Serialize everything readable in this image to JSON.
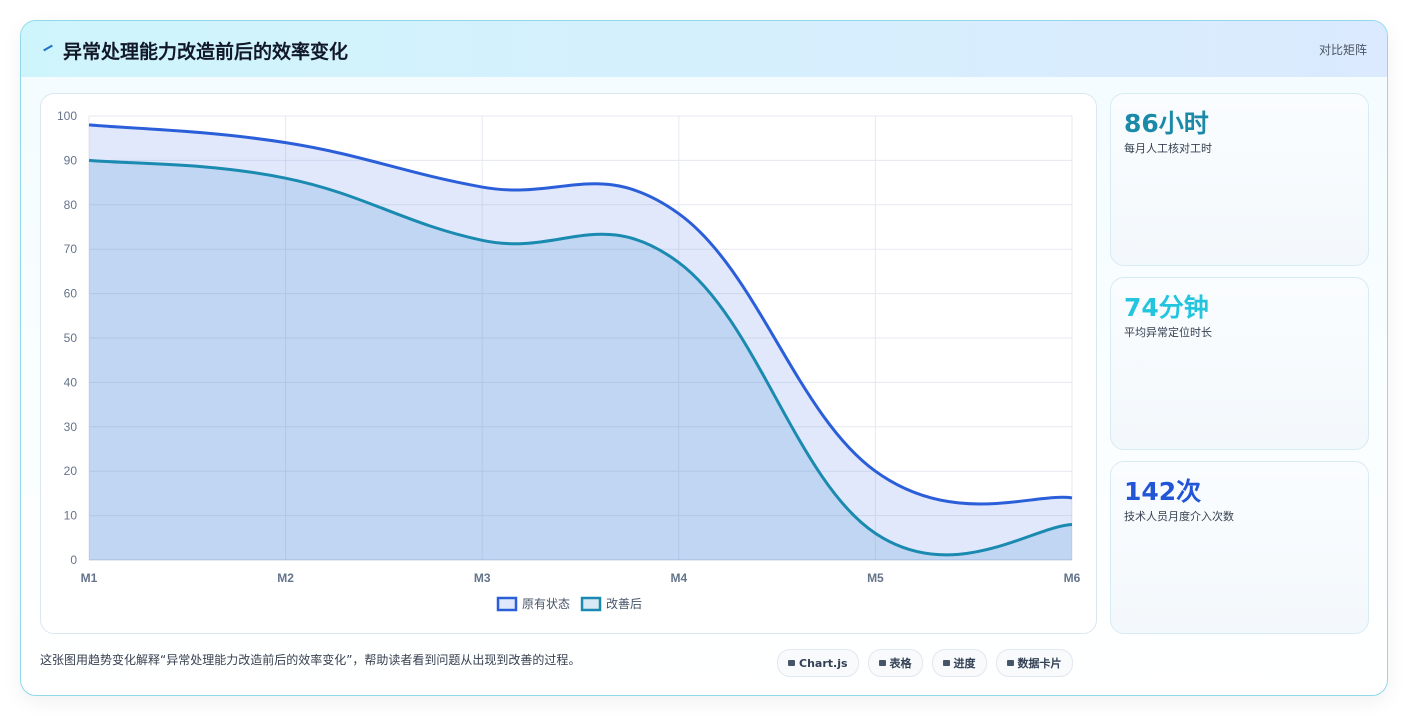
{
  "header": {
    "title": "异常处理能力改造前后的效率变化",
    "tag": "对比矩阵"
  },
  "chart_data": {
    "type": "line",
    "categories": [
      "M1",
      "M2",
      "M3",
      "M4",
      "M5",
      "M6"
    ],
    "series": [
      {
        "name": "原有状态",
        "color": "#2b5fd9",
        "values": [
          98,
          94,
          84,
          78,
          20,
          14
        ]
      },
      {
        "name": "改善后",
        "color": "#1a8ab0",
        "values": [
          90,
          86,
          72,
          67,
          6,
          8
        ]
      }
    ],
    "ylim": [
      0,
      100
    ],
    "yticks": [
      0,
      10,
      20,
      30,
      40,
      50,
      60,
      70,
      80,
      90,
      100
    ],
    "grid": true,
    "fill": true,
    "legend": "bottom"
  },
  "cards": [
    {
      "value": "86小时",
      "label": "每月人工核对工时",
      "color": "#1a8aa8"
    },
    {
      "value": "74分钟",
      "label": "平均异常定位时长",
      "color": "#22c5dd"
    },
    {
      "value": "142次",
      "label": "技术人员月度介入次数",
      "color": "#2356d6"
    }
  ],
  "footer": {
    "note": "这张图用趋势变化解释“异常处理能力改造前后的效率变化”，帮助读者看到问题从出现到改善的过程。",
    "buttons": [
      "Chart.js",
      "表格",
      "进度",
      "数据卡片"
    ]
  }
}
